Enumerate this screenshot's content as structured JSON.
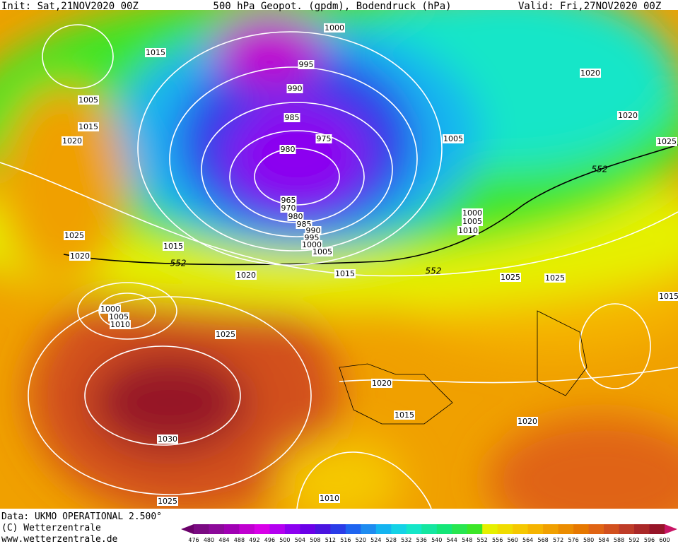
{
  "header": {
    "init": "Init: Sat,21NOV2020 00Z",
    "title": "500 hPa Geopot. (gpdm), Bodendruck (hPa)",
    "valid": "Valid: Fri,27NOV2020 00Z"
  },
  "isobar_labels": [
    "1000",
    "1015",
    "995",
    "990",
    "985",
    "975",
    "980",
    "1005",
    "1015",
    "1020",
    "965",
    "970",
    "980",
    "985",
    "990",
    "995",
    "1000",
    "1005",
    "1020",
    "1020",
    "1005",
    "1025",
    "1000",
    "1005",
    "1010",
    "1025",
    "1020",
    "1015",
    "1020",
    "1015",
    "1025",
    "1025",
    "1015",
    "1000",
    "1005",
    "1010",
    "1025",
    "1020",
    "1015",
    "1030",
    "1020",
    "1025",
    "1010"
  ],
  "contour_552_labels": [
    "552",
    "552",
    "552"
  ],
  "footer": {
    "data": "Data: UKMO OPERATIONAL 2.500°",
    "copyright": "(C) Wetterzentrale",
    "url": "www.wetterzentrale.de"
  },
  "colorbar": {
    "levels": [
      476,
      480,
      484,
      488,
      492,
      496,
      500,
      504,
      508,
      512,
      516,
      520,
      524,
      528,
      532,
      536,
      540,
      544,
      548,
      552,
      556,
      560,
      564,
      568,
      572,
      576,
      580,
      584,
      588,
      592,
      596,
      600
    ],
    "colors": [
      "#6a006a",
      "#7a0a82",
      "#8c0a9a",
      "#a000b4",
      "#c000d0",
      "#d800e8",
      "#b400f0",
      "#8c00f0",
      "#6a00e8",
      "#4a14e0",
      "#2a3ce8",
      "#1e64f0",
      "#1e8cf0",
      "#14b4f0",
      "#14d2e6",
      "#14e6c8",
      "#14e6a0",
      "#14e678",
      "#28e650",
      "#3ce628",
      "#e6f000",
      "#f0dc00",
      "#f5c800",
      "#f5b400",
      "#f0a000",
      "#eb8c00",
      "#e67800",
      "#e06414",
      "#d2501e",
      "#be3c28",
      "#aa2828",
      "#961428",
      "#c81464"
    ]
  }
}
